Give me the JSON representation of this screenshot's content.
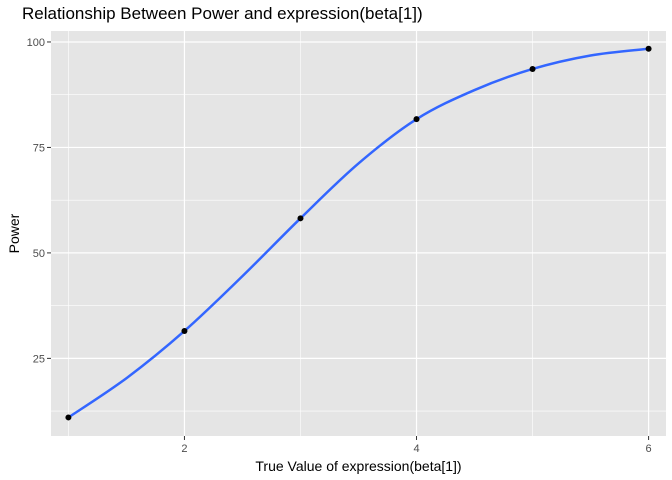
{
  "chart_data": {
    "type": "line",
    "title": "Relationship Between Power and expression(beta[1])",
    "xlabel": "True Value of expression(beta[1])",
    "ylabel": "Power",
    "xlim": [
      0.85,
      6.15
    ],
    "ylim": [
      6.6,
      102.6
    ],
    "x_ticks": [
      2,
      4,
      6
    ],
    "x_minor_ticks": [
      1,
      3,
      5
    ],
    "y_ticks": [
      25,
      50,
      75,
      100
    ],
    "y_minor_ticks": [
      12.5,
      37.5,
      62.5,
      87.5
    ],
    "x_tick_labels": [
      "2",
      "4",
      "6"
    ],
    "y_tick_labels": [
      "25",
      "50",
      "75",
      "100"
    ],
    "grid": true,
    "background_color": "#e5e5e5",
    "grid_color": "#ffffff",
    "series": [
      {
        "type": "scatter",
        "color": "#000000",
        "x": [
          1,
          2,
          3,
          4,
          5,
          6
        ],
        "y": [
          11.0,
          31.5,
          58.2,
          81.7,
          93.6,
          98.4
        ]
      },
      {
        "type": "smooth-line",
        "color": "#3366ff",
        "x": [
          1,
          1.5,
          2,
          2.5,
          3,
          3.5,
          4,
          4.5,
          5,
          5.5,
          6
        ],
        "y": [
          11.0,
          20.3,
          31.5,
          44.5,
          58.2,
          71.2,
          81.7,
          88.6,
          93.6,
          96.8,
          98.4
        ]
      }
    ]
  }
}
